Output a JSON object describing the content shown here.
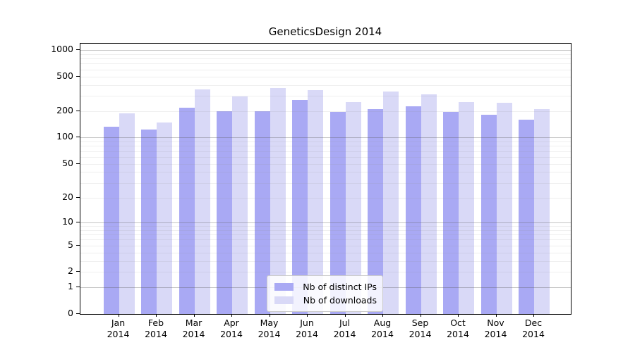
{
  "chart_data": {
    "type": "bar",
    "title": "GeneticsDesign 2014",
    "x_tick_months": [
      "Jan",
      "Feb",
      "Mar",
      "Apr",
      "May",
      "Jun",
      "Jul",
      "Aug",
      "Sep",
      "Oct",
      "Nov",
      "Dec"
    ],
    "x_tick_year": "2014",
    "y_ticks": [
      0,
      1,
      2,
      5,
      10,
      20,
      50,
      100,
      200,
      500,
      1000
    ],
    "y_scale": "log1p",
    "ylim": [
      0,
      1000
    ],
    "grid": "on",
    "legend_position": "bottom-center",
    "series": [
      {
        "name": "Nb of distinct IPs",
        "color": "#a9a9f4",
        "values": [
          133,
          123,
          218,
          201,
          202,
          268,
          195,
          211,
          230,
          197,
          184,
          161
        ]
      },
      {
        "name": "Nb of downloads",
        "color": "#d9d9f7",
        "values": [
          190,
          150,
          354,
          296,
          367,
          348,
          255,
          337,
          313,
          255,
          248,
          210
        ]
      }
    ]
  }
}
